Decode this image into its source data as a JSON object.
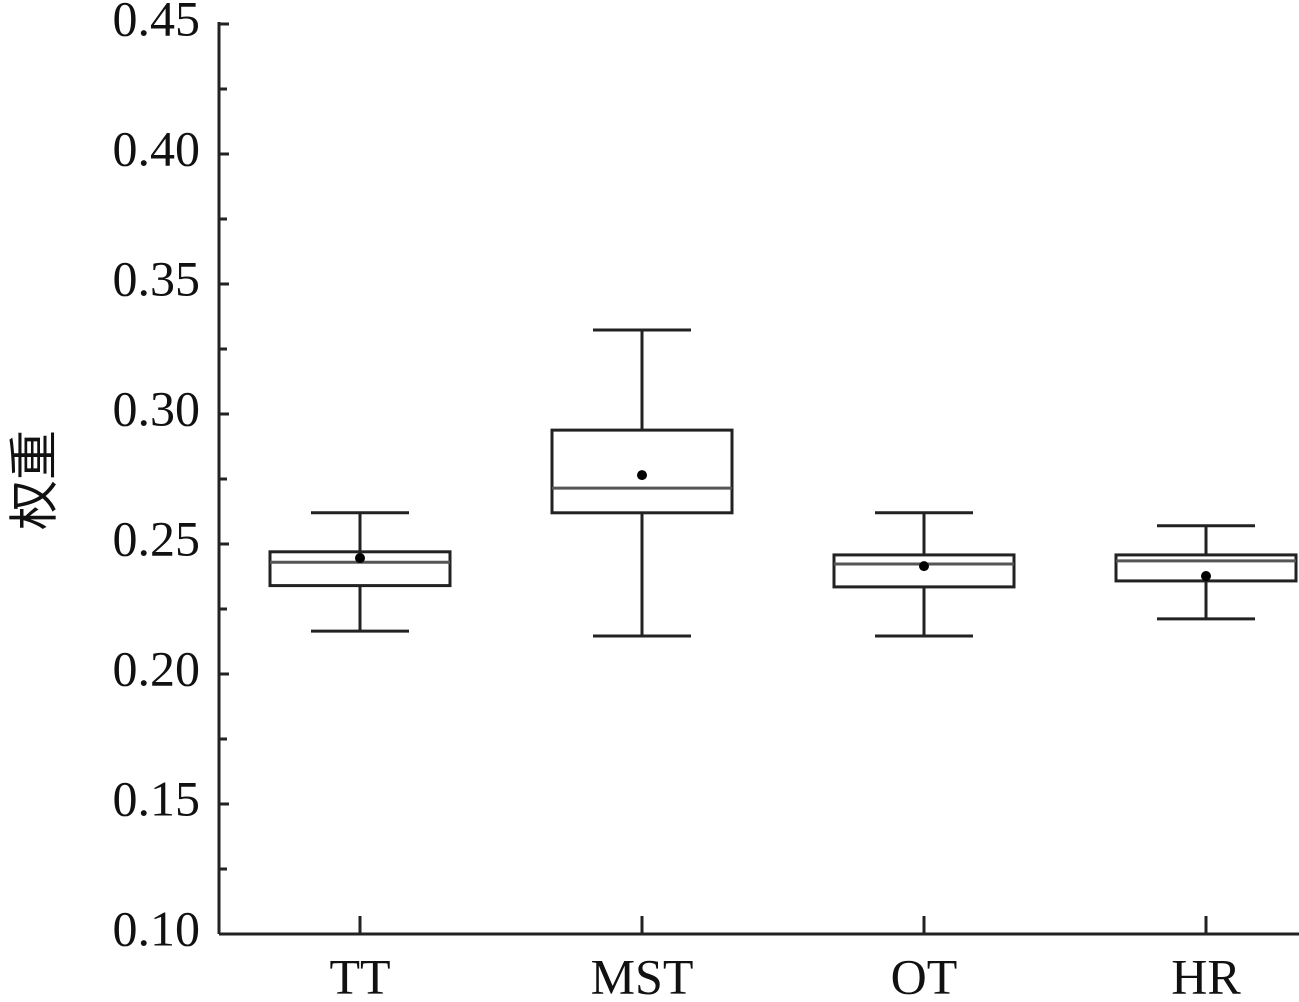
{
  "chart_data": {
    "type": "box",
    "y_label": "权重",
    "categories": [
      "TT",
      "MST",
      "OT",
      "HR"
    ],
    "boxes": [
      {
        "min": 0.2165,
        "q1": 0.234,
        "median": 0.243,
        "q3": 0.247,
        "max": 0.262,
        "mean": 0.2446
      },
      {
        "min": 0.2146,
        "q1": 0.262,
        "median": 0.2715,
        "q3": 0.2938,
        "max": 0.3323,
        "mean": 0.2765
      },
      {
        "min": 0.2146,
        "q1": 0.2335,
        "median": 0.2423,
        "q3": 0.2458,
        "max": 0.262,
        "mean": 0.2415
      },
      {
        "min": 0.2212,
        "q1": 0.2358,
        "median": 0.2435,
        "q3": 0.2458,
        "max": 0.257,
        "mean": 0.2377
      }
    ],
    "color": "#222222",
    "ylim": [
      0.1,
      0.45
    ],
    "yticks": [
      {
        "value": 0.1,
        "label": "0.10"
      },
      0.15,
      {
        "value": 0.2,
        "label": "0.20"
      },
      0.25,
      {
        "value": 0.3,
        "label": "0.30"
      },
      0.35,
      {
        "value": 0.4,
        "label": "0.40"
      },
      0.45
    ],
    "yminorticks": [
      0.125,
      0.175,
      0.225,
      0.275,
      0.325,
      0.375,
      0.425
    ]
  }
}
